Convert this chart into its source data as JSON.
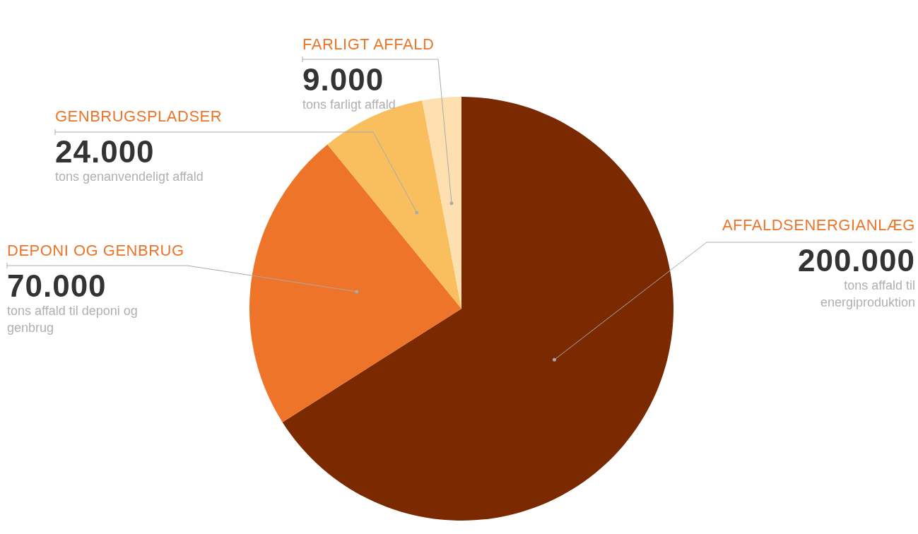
{
  "chart_data": {
    "type": "pie",
    "categories": [
      "AFFALDSENERGIANLÆG",
      "DEPONI OG GENBRUG",
      "GENBRUGSPLADSER",
      "FARLIGT AFFALD"
    ],
    "values": [
      200000,
      70000,
      24000,
      9000
    ],
    "value_labels": [
      "200.000",
      "70.000",
      "24.000",
      "9.000"
    ],
    "colors": [
      "#7a2900",
      "#ed7428",
      "#f9be5e",
      "#fddfb0"
    ],
    "annotations": [
      "tons affald til energiproduktion",
      "tons affald til deponi og genbrug",
      "tons genanvendeligt affald",
      "tons farligt affald"
    ],
    "legend": false
  }
}
